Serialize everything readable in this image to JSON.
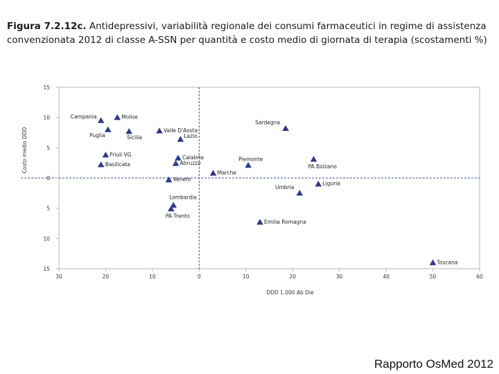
{
  "title": {
    "figure_label": "Figura 7.2.12c.",
    "text": "Antidepressivi, variabilità regionale dei consumi farmaceutici in regime di assistenza convenzionata 2012 di classe A-SSN per quantità e costo medio di giornata di terapia (scostamenti %)"
  },
  "footer": "Rapporto OsMed 2012",
  "colors": {
    "marker": "#2e3a87",
    "reference_line": "#2f4f9a",
    "frame": "#b5b5b5"
  },
  "chart_data": {
    "type": "scatter",
    "xlabel": "DDD 1.000 Ab Die",
    "ylabel": "Costo medio DDD",
    "xlim": [
      -30,
      60
    ],
    "ylim": [
      -15,
      15
    ],
    "xticks": [
      "30",
      "20",
      "10",
      "0",
      "10",
      "20",
      "30",
      "40",
      "50",
      "60"
    ],
    "yticks": [
      "15",
      "10",
      "5",
      "0",
      "5",
      "10",
      "15"
    ],
    "xtick_values": [
      -30,
      -20,
      -10,
      0,
      10,
      20,
      30,
      40,
      50,
      60
    ],
    "ytick_values": [
      15,
      10,
      5,
      0,
      -5,
      -10,
      -15
    ],
    "reference_lines": {
      "x": 0,
      "y": 0
    },
    "points": [
      {
        "label": "Campania",
        "x": -21,
        "y": 9.5,
        "label_pos": "left"
      },
      {
        "label": "Molise",
        "x": -17.5,
        "y": 10,
        "label_pos": "right"
      },
      {
        "label": "Puglia",
        "x": -19.5,
        "y": 8,
        "label_pos": "below-left"
      },
      {
        "label": "Sicilia",
        "x": -15,
        "y": 7.7,
        "label_pos": "below-right"
      },
      {
        "label": "Valle D'Aosta",
        "x": -8.5,
        "y": 7.8,
        "label_pos": "right"
      },
      {
        "label": "Lazio",
        "x": -4,
        "y": 6.4,
        "label_pos": "right-up"
      },
      {
        "label": "Sardegna",
        "x": 18.5,
        "y": 8.2,
        "label_pos": "above-left"
      },
      {
        "label": "Friuli VG",
        "x": -20,
        "y": 3.8,
        "label_pos": "right"
      },
      {
        "label": "Basilicata",
        "x": -21,
        "y": 2.2,
        "label_pos": "right"
      },
      {
        "label": "Calabria",
        "x": -4.5,
        "y": 3.3,
        "label_pos": "right"
      },
      {
        "label": "Abruzzo",
        "x": -5,
        "y": 2.4,
        "label_pos": "right"
      },
      {
        "label": "Piemonte",
        "x": 10.5,
        "y": 2.1,
        "label_pos": "above-right"
      },
      {
        "label": "PA Bolzano",
        "x": 24.5,
        "y": 3.1,
        "label_pos": "below"
      },
      {
        "label": "Marche",
        "x": 3,
        "y": 0.8,
        "label_pos": "right"
      },
      {
        "label": "Veneto",
        "x": -6.5,
        "y": -0.3,
        "label_pos": "right"
      },
      {
        "label": "Liguria",
        "x": 25.5,
        "y": -1.0,
        "label_pos": "right"
      },
      {
        "label": "Umbria",
        "x": 21.5,
        "y": -2.5,
        "label_pos": "above-left"
      },
      {
        "label": "Lombardia",
        "x": -5.5,
        "y": -4.5,
        "label_pos": "above"
      },
      {
        "label": "PA Trento",
        "x": -6,
        "y": -5.1,
        "label_pos": "below"
      },
      {
        "label": "Emilia Romagna",
        "x": 13,
        "y": -7.3,
        "label_pos": "right"
      },
      {
        "label": "Toscana",
        "x": 50,
        "y": -14,
        "label_pos": "right"
      }
    ]
  }
}
